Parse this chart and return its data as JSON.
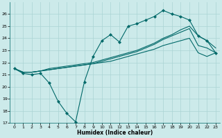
{
  "xlabel": "Humidex (Indice chaleur)",
  "bg_color": "#cceaea",
  "grid_color": "#aad4d4",
  "line_color": "#006868",
  "xlim": [
    -0.5,
    23.5
  ],
  "ylim": [
    17,
    27
  ],
  "yticks": [
    17,
    18,
    19,
    20,
    21,
    22,
    23,
    24,
    25,
    26
  ],
  "xticks": [
    0,
    1,
    2,
    3,
    4,
    5,
    6,
    7,
    8,
    9,
    10,
    11,
    12,
    13,
    14,
    15,
    16,
    17,
    18,
    19,
    20,
    21,
    22,
    23
  ],
  "line1_x": [
    0,
    1,
    2,
    3,
    4,
    5,
    6,
    7,
    8,
    9,
    10,
    11,
    12,
    13,
    14,
    15,
    16,
    17,
    18,
    19,
    20,
    21,
    22,
    23
  ],
  "line1_y": [
    21.5,
    21.1,
    21.0,
    21.1,
    20.3,
    18.8,
    17.8,
    17.1,
    20.4,
    22.5,
    23.8,
    24.3,
    23.7,
    25.0,
    25.2,
    25.5,
    25.8,
    26.3,
    26.0,
    25.8,
    25.5,
    24.2,
    23.8,
    22.8
  ],
  "line2_x": [
    0,
    1,
    2,
    3,
    4,
    5,
    6,
    7,
    8,
    9,
    10,
    11,
    12,
    13,
    14,
    15,
    16,
    17,
    18,
    19,
    20,
    21,
    22,
    23
  ],
  "line2_y": [
    21.5,
    21.2,
    21.2,
    21.3,
    21.5,
    21.6,
    21.7,
    21.8,
    21.9,
    22.0,
    22.2,
    22.4,
    22.6,
    22.8,
    23.0,
    23.3,
    23.6,
    24.0,
    24.3,
    24.7,
    25.0,
    24.2,
    23.8,
    23.2
  ],
  "line3_x": [
    0,
    1,
    2,
    3,
    4,
    5,
    6,
    7,
    8,
    9,
    10,
    11,
    12,
    13,
    14,
    15,
    16,
    17,
    18,
    19,
    20,
    21,
    22,
    23
  ],
  "line3_y": [
    21.5,
    21.2,
    21.2,
    21.3,
    21.4,
    21.5,
    21.6,
    21.7,
    21.8,
    21.9,
    22.1,
    22.3,
    22.5,
    22.7,
    22.9,
    23.2,
    23.5,
    23.9,
    24.2,
    24.5,
    24.8,
    23.4,
    23.2,
    22.8
  ],
  "line4_x": [
    0,
    1,
    2,
    3,
    4,
    5,
    6,
    7,
    8,
    9,
    10,
    11,
    12,
    13,
    14,
    15,
    16,
    17,
    18,
    19,
    20,
    21,
    22,
    23
  ],
  "line4_y": [
    21.5,
    21.2,
    21.2,
    21.3,
    21.4,
    21.5,
    21.6,
    21.7,
    21.8,
    21.9,
    22.0,
    22.1,
    22.3,
    22.5,
    22.7,
    22.9,
    23.1,
    23.4,
    23.6,
    23.8,
    24.0,
    22.8,
    22.5,
    22.8
  ]
}
